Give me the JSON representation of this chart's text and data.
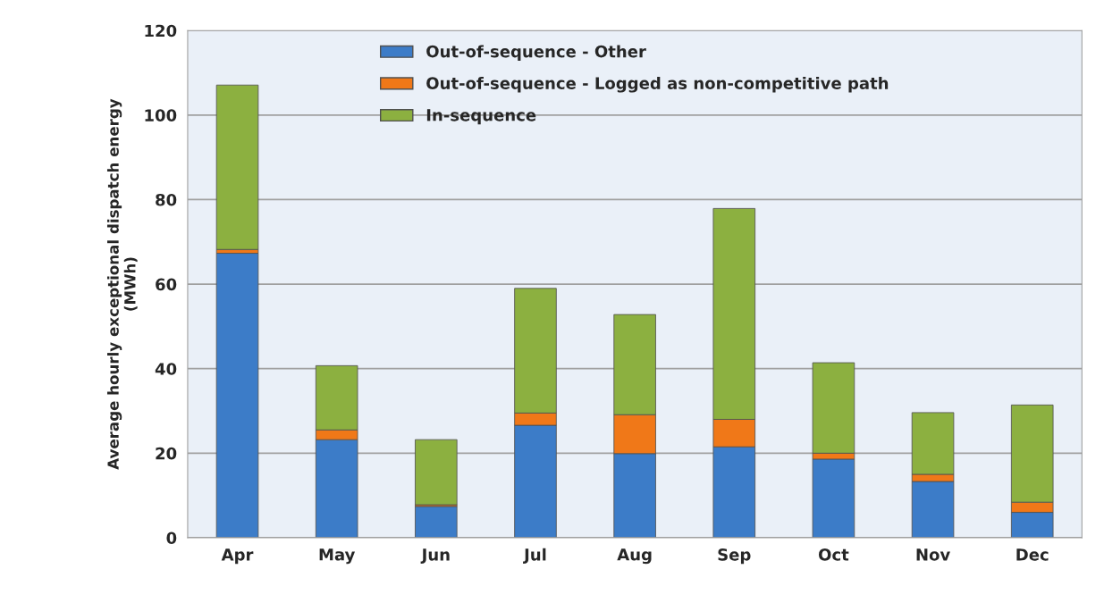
{
  "chart_data": {
    "type": "bar",
    "stacked": true,
    "ylabel": "Average hourly exceptional dispatch energy\n(MWh)",
    "categories": [
      "Apr",
      "May",
      "Jun",
      "Jul",
      "Aug",
      "Sep",
      "Oct",
      "Nov",
      "Dec"
    ],
    "series": [
      {
        "name": "Out-of-sequence - Other",
        "color": "#3c7cc8",
        "values": [
          67.3,
          23.2,
          7.4,
          26.6,
          19.9,
          21.5,
          18.6,
          13.3,
          6.0
        ]
      },
      {
        "name": "Out-of-sequence - Logged as non-competitive path",
        "color": "#f07818",
        "values": [
          0.9,
          2.3,
          0.4,
          2.9,
          9.2,
          6.5,
          1.4,
          1.7,
          2.4
        ]
      },
      {
        "name": "In-sequence",
        "color": "#8cb040",
        "values": [
          38.9,
          15.2,
          15.4,
          29.5,
          23.7,
          49.9,
          21.4,
          14.6,
          23.0
        ]
      }
    ],
    "ylim": [
      0,
      120
    ],
    "yticks": [
      0,
      20,
      40,
      60,
      80,
      100,
      120
    ],
    "grid": "y",
    "legend": "top"
  }
}
